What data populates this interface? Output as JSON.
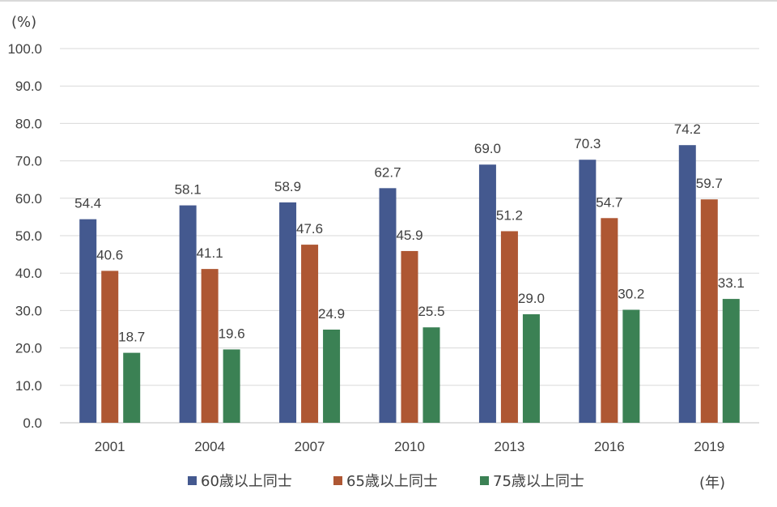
{
  "chart_data": {
    "type": "bar",
    "ylabel": "(%)",
    "xlabel": "(年)",
    "ylim": [
      0,
      100
    ],
    "yticks": [
      "0.0",
      "10.0",
      "20.0",
      "30.0",
      "40.0",
      "50.0",
      "60.0",
      "70.0",
      "80.0",
      "90.0",
      "100.0"
    ],
    "categories": [
      "2001",
      "2004",
      "2007",
      "2010",
      "2013",
      "2016",
      "2019"
    ],
    "grid": true,
    "legend_position": "bottom",
    "series": [
      {
        "name": "60歳以上同士",
        "color": "#44598f",
        "values": [
          54.4,
          58.1,
          58.9,
          62.7,
          69.0,
          70.3,
          74.2
        ],
        "labels": [
          "54.4",
          "58.1",
          "58.9",
          "62.7",
          "69.0",
          "70.3",
          "74.2"
        ]
      },
      {
        "name": "65歳以上同士",
        "color": "#ae5733",
        "values": [
          40.6,
          41.1,
          47.6,
          45.9,
          51.2,
          54.7,
          59.7
        ],
        "labels": [
          "40.6",
          "41.1",
          "47.6",
          "45.9",
          "51.2",
          "54.7",
          "59.7"
        ]
      },
      {
        "name": "75歳以上同士",
        "color": "#3b8154",
        "values": [
          18.7,
          19.6,
          24.9,
          25.5,
          29.0,
          30.2,
          33.1
        ],
        "labels": [
          "18.7",
          "19.6",
          "24.9",
          "25.5",
          "29.0",
          "30.2",
          "33.1"
        ]
      }
    ]
  }
}
